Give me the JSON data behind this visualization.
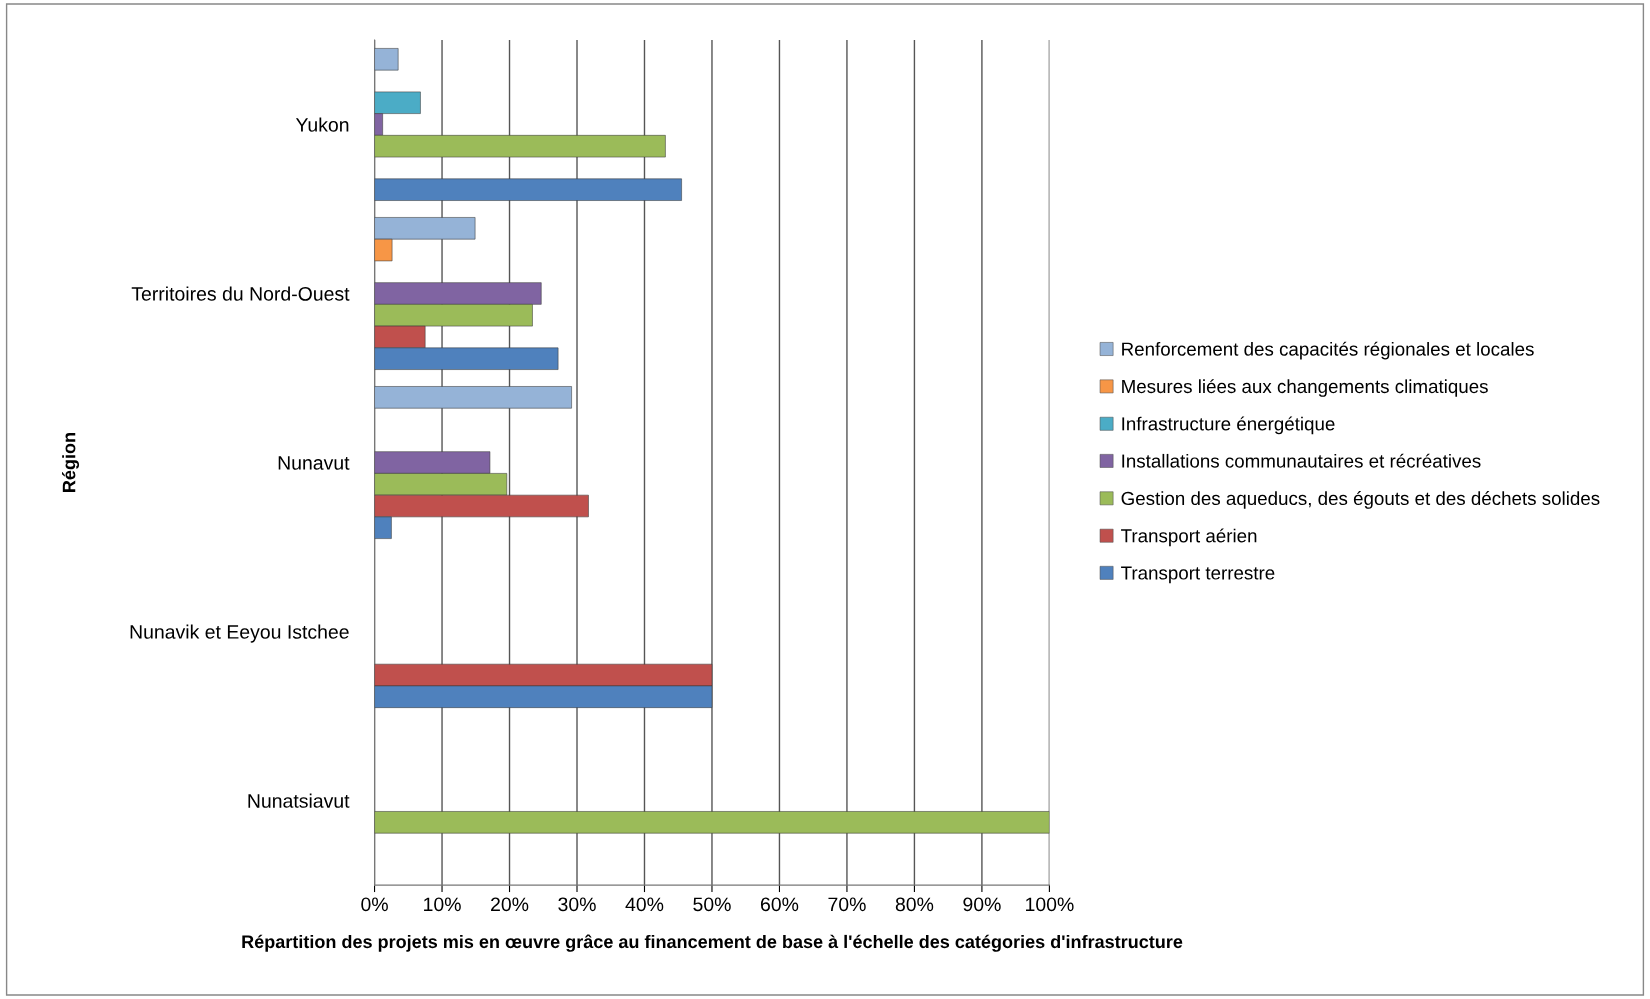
{
  "chart_data": {
    "type": "bar",
    "orientation": "horizontal",
    "xlabel": "Répartition des projets mis en œuvre grâce au financement de base à l'échelle des catégories d'infrastructure",
    "ylabel": "Région",
    "categories": [
      "Yukon",
      "Territoires du Nord-Ouest",
      "Nunavut",
      "Nunavik et Eeyou Istchee",
      "Nunatsiavut"
    ],
    "series": [
      {
        "name": "Renforcement des capacités régionales et locales",
        "color": "#95b3d7",
        "values": [
          3.5,
          14.9,
          29.2,
          null,
          null
        ]
      },
      {
        "name": "Mesures liées aux changements climatiques",
        "color": "#f79646",
        "values": [
          null,
          2.6,
          null,
          null,
          null
        ]
      },
      {
        "name": "Infrastructure énergétique",
        "color": "#4bacc6",
        "values": [
          6.8,
          null,
          null,
          null,
          null
        ]
      },
      {
        "name": "Installations communautaires et récréatives",
        "color": "#8064a2",
        "values": [
          1.2,
          24.7,
          17.1,
          null,
          null
        ]
      },
      {
        "name": "Gestion des aqueducs, des égouts et des déchets solides",
        "color": "#9bbb59",
        "values": [
          43.1,
          23.4,
          19.6,
          null,
          100
        ]
      },
      {
        "name": "Transport aérien",
        "color": "#c0504d",
        "values": [
          null,
          7.5,
          31.7,
          50,
          null
        ]
      },
      {
        "name": "Transport terrestre",
        "color": "#4f81bd",
        "values": [
          45.5,
          27.2,
          2.5,
          50,
          null
        ]
      }
    ],
    "xlim": [
      0,
      100
    ],
    "xticks": [
      {
        "value": 0,
        "label": "0%"
      },
      {
        "value": 10,
        "label": "10%"
      },
      {
        "value": 20,
        "label": "20%"
      },
      {
        "value": 30,
        "label": "30%"
      },
      {
        "value": 40,
        "label": "40%"
      },
      {
        "value": 50,
        "label": "50%"
      },
      {
        "value": 60,
        "label": "60%"
      },
      {
        "value": 70,
        "label": "70%"
      },
      {
        "value": 80,
        "label": "80%"
      },
      {
        "value": 90,
        "label": "90%"
      },
      {
        "value": 100,
        "label": "100%"
      }
    ],
    "grid": "x",
    "legend": "right"
  }
}
